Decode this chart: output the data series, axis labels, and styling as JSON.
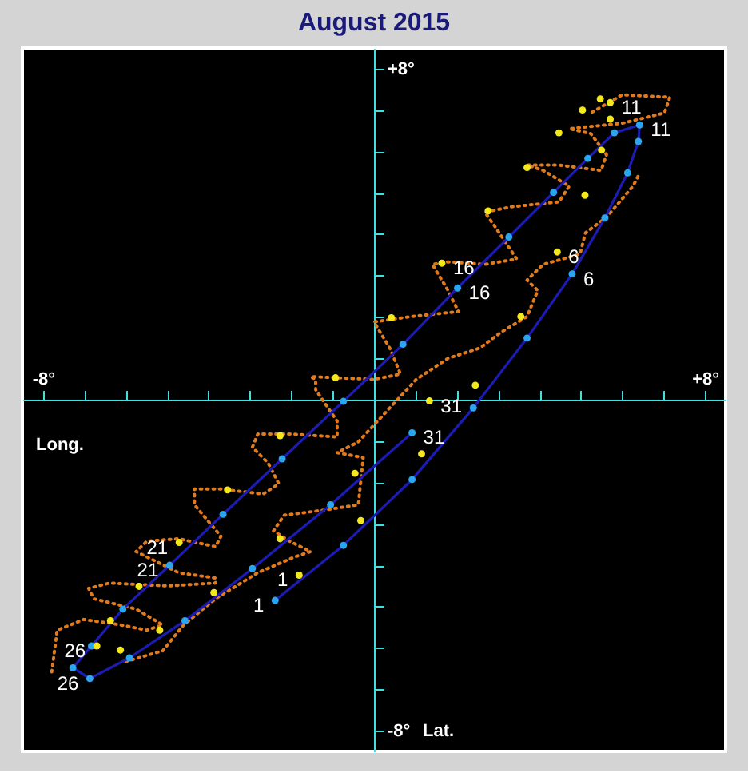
{
  "chart_data": {
    "type": "scatter",
    "title": "August 2015",
    "xlabel": "Long.",
    "ylabel": "Lat.",
    "xlim": [
      -8.5,
      8.5
    ],
    "ylim": [
      -8.5,
      8.5
    ],
    "xticks": [
      {
        "value": -8,
        "label": "-8°"
      },
      {
        "value": -7,
        "label": null
      },
      {
        "value": -6,
        "label": null
      },
      {
        "value": -5,
        "label": null
      },
      {
        "value": -4,
        "label": null
      },
      {
        "value": -3,
        "label": null
      },
      {
        "value": -2,
        "label": null
      },
      {
        "value": -1,
        "label": null
      },
      {
        "value": 1,
        "label": null
      },
      {
        "value": 2,
        "label": null
      },
      {
        "value": 3,
        "label": null
      },
      {
        "value": 4,
        "label": null
      },
      {
        "value": 5,
        "label": null
      },
      {
        "value": 6,
        "label": null
      },
      {
        "value": 7,
        "label": null
      },
      {
        "value": 8,
        "label": "+8°"
      }
    ],
    "yticks": [
      {
        "value": -8,
        "label": "-8°"
      },
      {
        "value": -7,
        "label": null
      },
      {
        "value": -6,
        "label": null
      },
      {
        "value": -5,
        "label": null
      },
      {
        "value": -4,
        "label": null
      },
      {
        "value": -3,
        "label": null
      },
      {
        "value": -2,
        "label": null
      },
      {
        "value": -1,
        "label": null
      },
      {
        "value": 1,
        "label": null
      },
      {
        "value": 2,
        "label": null
      },
      {
        "value": 3,
        "label": null
      },
      {
        "value": 4,
        "label": null
      },
      {
        "value": 5,
        "label": null
      },
      {
        "value": 6,
        "label": null
      },
      {
        "value": 7,
        "label": null
      },
      {
        "value": 8,
        "label": "+8°"
      }
    ],
    "grid": false,
    "series": [
      {
        "type": "line",
        "color": "#e07a1c",
        "line_style": "dotted",
        "marker": "none",
        "x": [
          -7.79,
          -7.66,
          -7.02,
          -6.13,
          -5.49,
          -5.11,
          -5.75,
          -6.77,
          -6.9,
          -6.39,
          -4.98,
          -3.83,
          -3.83,
          -4.72,
          -5.75,
          -5.49,
          -4.72,
          -3.83,
          -3.7,
          -4.34,
          -4.34,
          -3.7,
          -2.68,
          -2.3,
          -2.56,
          -2.94,
          -2.81,
          -2.04,
          -0.89,
          -0.89,
          -1.41,
          -1.41,
          -1.53,
          0,
          0.64,
          0.38,
          0,
          0.89,
          2.04,
          1.79,
          1.41,
          1.79,
          2.68,
          3.45,
          2.94,
          2.68,
          3.32,
          4.47,
          4.72,
          4.09,
          3.7,
          4.47,
          5.49,
          5.62,
          5.24,
          4.72,
          6,
          7.02,
          7.15,
          6,
          5.24
        ],
        "values": [
          -6.58,
          -5.57,
          -5.31,
          -5.44,
          -5.57,
          -5.44,
          -5.06,
          -4.81,
          -4.56,
          -4.43,
          -4.5,
          -4.43,
          -4.31,
          -4.18,
          -3.67,
          -3.42,
          -3.36,
          -3.55,
          -3.3,
          -2.54,
          -2.16,
          -2.16,
          -2.28,
          -2.03,
          -1.53,
          -1.15,
          -0.83,
          -0.83,
          -0.9,
          -0.52,
          0.24,
          0.49,
          0.56,
          0.49,
          0.62,
          1.25,
          1.88,
          2.01,
          2.13,
          2.64,
          3.27,
          3.33,
          3.27,
          3.4,
          4.16,
          4.53,
          4.66,
          4.78,
          5.16,
          5.54,
          5.67,
          5.67,
          5.54,
          5.92,
          6.43,
          6.55,
          6.68,
          6.93,
          7.31,
          7.37,
          6.93
        ]
      },
      {
        "type": "line",
        "color": "#e07a1c",
        "line_style": "dotted",
        "marker": "none",
        "x": [
          -6,
          -5.11,
          -4.6,
          -3.83,
          -2.81,
          -1.92,
          -1.53,
          -2.04,
          -2.43,
          -2.17,
          -1.15,
          -0.38,
          -0.26,
          -0.89,
          -0.38,
          1.02,
          1.79,
          2.56,
          3.07,
          3.7,
          3.96,
          3.7,
          4.09,
          4.98,
          5.11,
          5.62,
          6.26,
          6.39
        ],
        "values": [
          -6.33,
          -6.07,
          -5.44,
          -4.81,
          -4.18,
          -3.8,
          -3.67,
          -3.42,
          -3.17,
          -2.79,
          -2.66,
          -2.54,
          -1.4,
          -1.28,
          -1.02,
          0.49,
          1,
          1.25,
          1.63,
          2.01,
          2.64,
          2.89,
          3.27,
          3.52,
          4.03,
          4.41,
          5.16,
          5.41
        ]
      },
      {
        "type": "line",
        "color": "#1c1cb4",
        "line_style": "solid",
        "marker": "none",
        "x": [
          -2.39,
          -0.74,
          0.92,
          2.4,
          3.7,
          4.79,
          5.58,
          6.13,
          6.39,
          6.42,
          5.81,
          5.17,
          4.34,
          3.26,
          2.02,
          0.7,
          -0.74,
          -2.22,
          -3.65,
          -4.94,
          -6.07,
          -6.83,
          -7.28,
          -6.87,
          -5.91,
          -4.57,
          -2.94,
          -1.05,
          0.92
        ],
        "values": [
          -4.85,
          -3.52,
          -1.93,
          -0.2,
          1.49,
          3.04,
          4.39,
          5.48,
          6.24,
          6.64,
          6.45,
          5.83,
          5.01,
          3.93,
          2.7,
          1.34,
          -0.04,
          -1.43,
          -2.77,
          -4.0,
          -5.06,
          -5.95,
          -6.48,
          -6.74,
          -6.24,
          -5.34,
          -4.08,
          -2.54,
          -0.8
        ]
      },
      {
        "type": "scatter",
        "color": "#2aa6ee",
        "marker": "circle",
        "x": [
          -2.39,
          -0.74,
          0.92,
          2.4,
          3.7,
          4.79,
          5.58,
          6.13,
          6.39,
          6.42,
          5.81,
          5.17,
          4.34,
          3.26,
          2.02,
          0.7,
          -0.74,
          -2.22,
          -3.65,
          -4.94,
          -6.07,
          -6.83,
          -7.28,
          -6.87,
          -5.91,
          -4.57,
          -2.94,
          -1.05,
          0.92
        ],
        "values": [
          -4.85,
          -3.52,
          -1.93,
          -0.2,
          1.49,
          3.04,
          4.39,
          5.48,
          6.24,
          6.64,
          6.45,
          5.83,
          5.01,
          3.93,
          2.7,
          1.34,
          -0.04,
          -1.43,
          -2.77,
          -4.0,
          -5.06,
          -5.95,
          -6.48,
          -6.74,
          -6.24,
          -5.34,
          -4.08,
          -2.54,
          -0.8
        ]
      },
      {
        "type": "scatter",
        "color": "#f2e81c",
        "marker": "circle",
        "x": [
          -1.81,
          -0.32,
          1.15,
          2.45,
          3.55,
          4.43,
          5.1,
          5.5,
          5.71,
          5.71,
          5.47,
          5.04,
          4.47,
          3.7,
          2.76,
          1.64,
          0.42,
          -0.93,
          -2.27,
          -3.54,
          -4.71,
          -5.68,
          -6.37,
          -6.7,
          -6.13,
          -5.18,
          -3.87,
          -2.27,
          -0.46,
          1.34
        ],
        "values": [
          -4.24,
          -2.92,
          -1.31,
          0.35,
          2.01,
          3.57,
          4.94,
          6.03,
          6.78,
          7.18,
          7.27,
          7.0,
          6.45,
          5.61,
          4.56,
          3.3,
          1.98,
          0.53,
          -0.87,
          -2.18,
          -3.45,
          -4.51,
          -5.34,
          -5.95,
          -6.05,
          -5.57,
          -4.66,
          -3.36,
          -1.78,
          -0.03
        ]
      }
    ],
    "annotations": [
      {
        "text": "1",
        "x": -2.39,
        "y": -4.85
      },
      {
        "text": "6",
        "x": 4.79,
        "y": 3.04
      },
      {
        "text": "11",
        "x": 6.42,
        "y": 6.64
      },
      {
        "text": "16",
        "x": 2.02,
        "y": 2.7
      },
      {
        "text": "21",
        "x": -4.94,
        "y": -4.0
      },
      {
        "text": "26",
        "x": -6.87,
        "y": -6.74
      },
      {
        "text": "31",
        "x": 0.92,
        "y": -0.8
      },
      {
        "text": "1",
        "x": -1.81,
        "y": -4.24
      },
      {
        "text": "6",
        "x": 4.43,
        "y": 3.57
      },
      {
        "text": "11",
        "x": 5.71,
        "y": 7.18
      },
      {
        "text": "16",
        "x": 1.64,
        "y": 3.3
      },
      {
        "text": "21",
        "x": -4.71,
        "y": -3.45
      },
      {
        "text": "26",
        "x": -6.7,
        "y": -5.95
      },
      {
        "text": "31",
        "x": 1.34,
        "y": -0.03
      }
    ]
  }
}
